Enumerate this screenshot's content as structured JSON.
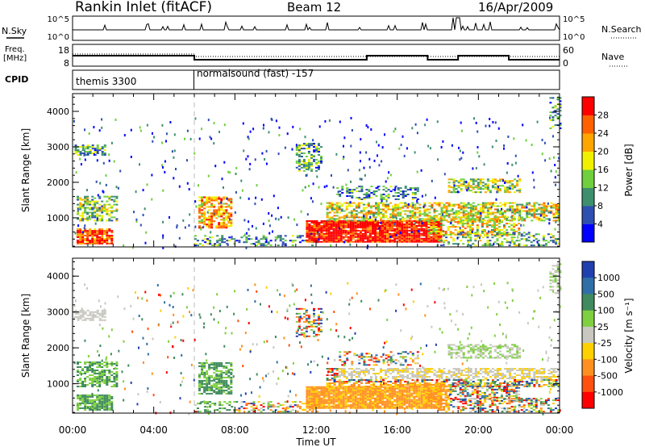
{
  "header": {
    "station": "Rankin Inlet (fitACF)",
    "beam": "Beam 12",
    "date": "16/Apr/2009"
  },
  "strip": {
    "nsky_label": "N.Sky",
    "nsky_ticks": [
      "10^5",
      "10^0"
    ],
    "nsearch_label": "N.Search",
    "nsearch_ticks": [
      "10^5",
      "10^0"
    ],
    "freq_label_line1": "Freq.",
    "freq_label_line2": "[MHz]",
    "freq_ticks": [
      "18",
      "8"
    ],
    "nave_label": "Nave",
    "nave_ticks": [
      "60",
      "0"
    ],
    "cpid_label": "CPID",
    "cpid_segments": [
      {
        "label": "themis 3300",
        "start_hour": 0
      },
      {
        "label": "normalsound (fast) -157",
        "start_hour": 6
      }
    ]
  },
  "chart_data": [
    {
      "type": "heatmap",
      "name": "power-panel",
      "xlabel": "",
      "ylabel": "Slant Range [km]",
      "xlim": [
        0,
        24
      ],
      "ylim": [
        180,
        4500
      ],
      "yticks": [
        1000,
        2000,
        3000,
        4000
      ],
      "colorbar": {
        "label": "Power [dB]",
        "ticks": [
          "4",
          "8",
          "12",
          "16",
          "20",
          "24",
          "28"
        ],
        "colors": [
          "#0000ff",
          "#2d4fb2",
          "#3d8f6e",
          "#6fcf3c",
          "#f0f000",
          "#ffa500",
          "#ff6000",
          "#ff0000"
        ]
      }
    },
    {
      "type": "heatmap",
      "name": "velocity-panel",
      "xlabel": "Time UT",
      "ylabel": "Slant Range [km]",
      "xlim": [
        0,
        24
      ],
      "ylim": [
        180,
        4500
      ],
      "yticks": [
        1000,
        2000,
        3000,
        4000
      ],
      "xticks": [
        "00:00",
        "04:00",
        "08:00",
        "12:00",
        "16:00",
        "20:00",
        "00:00"
      ],
      "colorbar": {
        "label": "Velocity [m s⁻¹]",
        "ticks": [
          "1000",
          "500",
          "100",
          "25",
          "-25",
          "-100",
          "-500",
          "-1000"
        ],
        "colors": [
          "#2040b0",
          "#2f6fa8",
          "#3f8a5e",
          "#7fd040",
          "#c8c8c0",
          "#ffd000",
          "#ff9020",
          "#ff5010",
          "#ff0000"
        ]
      }
    }
  ]
}
